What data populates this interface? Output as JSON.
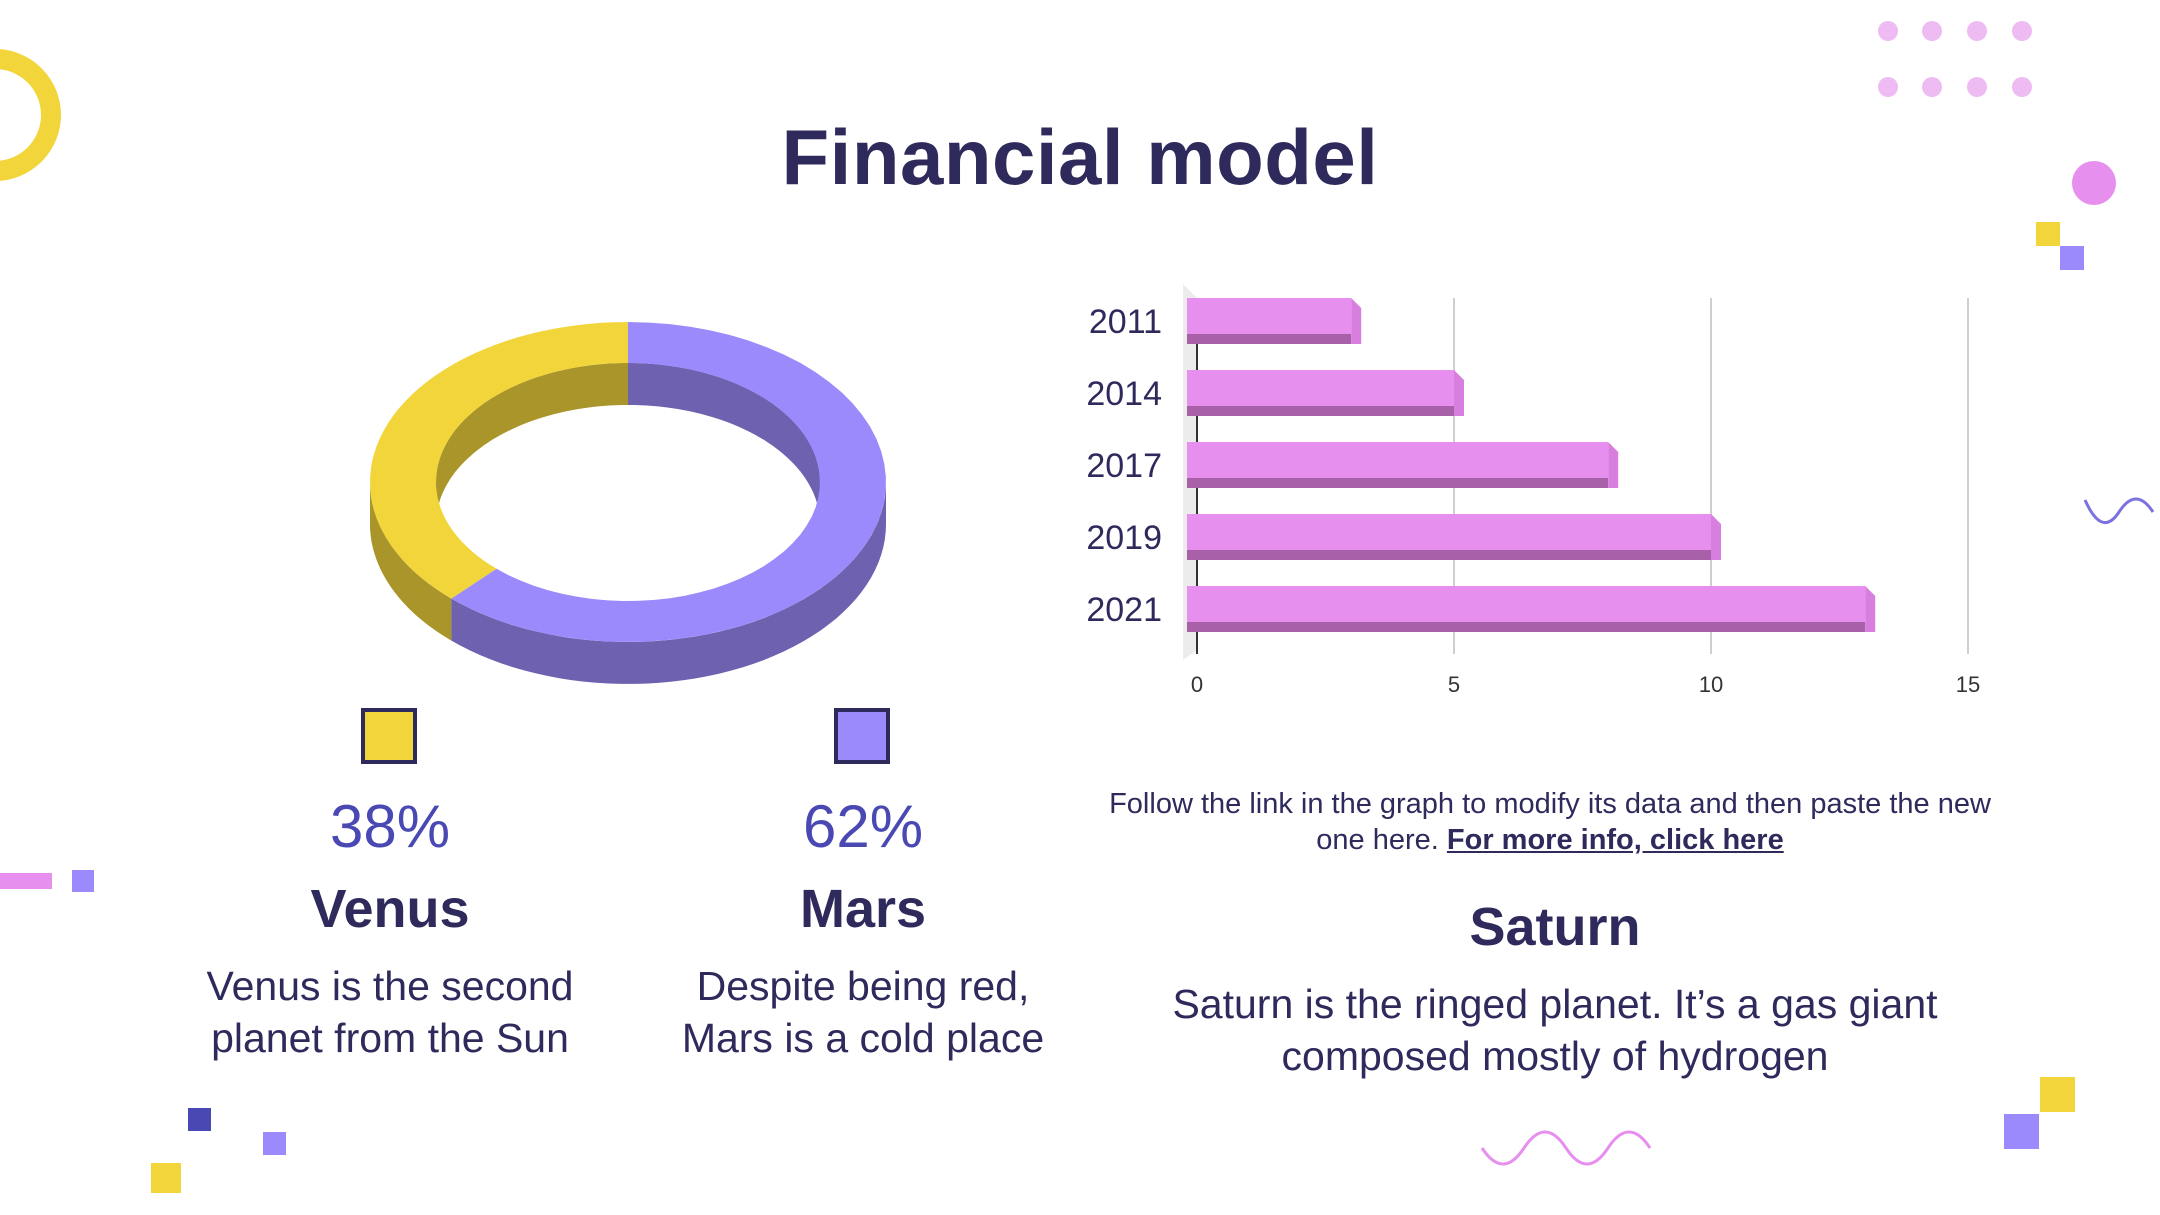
{
  "slide": {
    "title": "Financial model"
  },
  "left": {
    "items": [
      {
        "percent": "38%",
        "label": "Venus",
        "desc_line1": "Venus is the second",
        "desc_line2": "planet from the Sun",
        "color": "#f2d53a"
      },
      {
        "percent": "62%",
        "label": "Mars",
        "desc_line1": "Despite being red,",
        "desc_line2": "Mars is a cold place",
        "color": "#9b8afb"
      }
    ]
  },
  "right": {
    "note_text": "Follow the link in the graph to modify its data and then paste the new one here.",
    "note_link": "For more info, click here",
    "saturn_title": "Saturn",
    "saturn_desc_line1": "Saturn is the ringed planet. It’s a gas giant",
    "saturn_desc_line2": "composed mostly of hydrogen"
  },
  "colors": {
    "text_dark": "#2e2a5c",
    "accent_blue": "#4a48b3",
    "yellow": "#f2d53a",
    "purple": "#9b8afb",
    "pink": "#e68fee"
  },
  "chart_data": [
    {
      "type": "pie",
      "categories": [
        "Venus",
        "Mars"
      ],
      "values": [
        38,
        62
      ],
      "colors": [
        "#f2d53a",
        "#9b8afb"
      ]
    },
    {
      "type": "bar",
      "orientation": "horizontal",
      "categories": [
        "2011",
        "2014",
        "2017",
        "2019",
        "2021"
      ],
      "values": [
        3,
        5,
        8,
        10,
        13
      ],
      "xlim": [
        0,
        15
      ],
      "xticks": [
        0,
        5,
        10,
        15
      ],
      "grid": true,
      "color": "#e68fee"
    }
  ]
}
